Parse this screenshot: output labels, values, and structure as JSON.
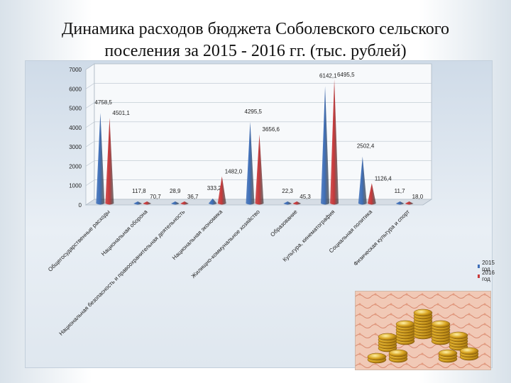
{
  "slide": {
    "title_line1": "Динамика расходов бюджета  Соболевского сельского",
    "title_line2": "поселения за 2015 - 2016 гг. (тыс. рублей)"
  },
  "colors": {
    "series_2015": "#3f6fb8",
    "series_2016": "#c8393a",
    "axis": "#9aa7b5"
  },
  "chart_data": {
    "type": "bar",
    "bar_shape": "cone",
    "categories": [
      "Общегосударственные расходы",
      "Национальная оборона",
      "Национальная безопасность и правоохранительная деятельность",
      "Национальная экономика",
      "Жилищно-коммунальное хозяйство",
      "Образование",
      "Культура, кинематография",
      "Социальная политика",
      "Физическая культура и спорт"
    ],
    "series": [
      {
        "name": "2015 год",
        "values": [
          4758.5,
          117.8,
          28.9,
          333.2,
          4295.5,
          22.3,
          6142.1,
          2502.4,
          11.7
        ]
      },
      {
        "name": "2016 год",
        "values": [
          4501.1,
          70.7,
          36.7,
          1482.0,
          3656.6,
          45.3,
          6495.5,
          1126.4,
          18.0
        ]
      }
    ],
    "data_labels": [
      [
        "4758,5",
        "117,8",
        "28,9",
        "333,2",
        "4295,5",
        "22,3",
        "6142,1",
        "2502,4",
        "11,7"
      ],
      [
        "4501,1",
        "70,7",
        "36,7",
        "1482,0",
        "3656,6",
        "45,3",
        "6495,5",
        "1126,4",
        "18,0"
      ]
    ],
    "y_ticks": [
      "0",
      "1000",
      "2000",
      "3000",
      "4000",
      "5000",
      "6000",
      "7000"
    ],
    "ylim": [
      0,
      7000
    ],
    "grid": true,
    "legend": "right",
    "xlabel": "",
    "ylabel": ""
  }
}
